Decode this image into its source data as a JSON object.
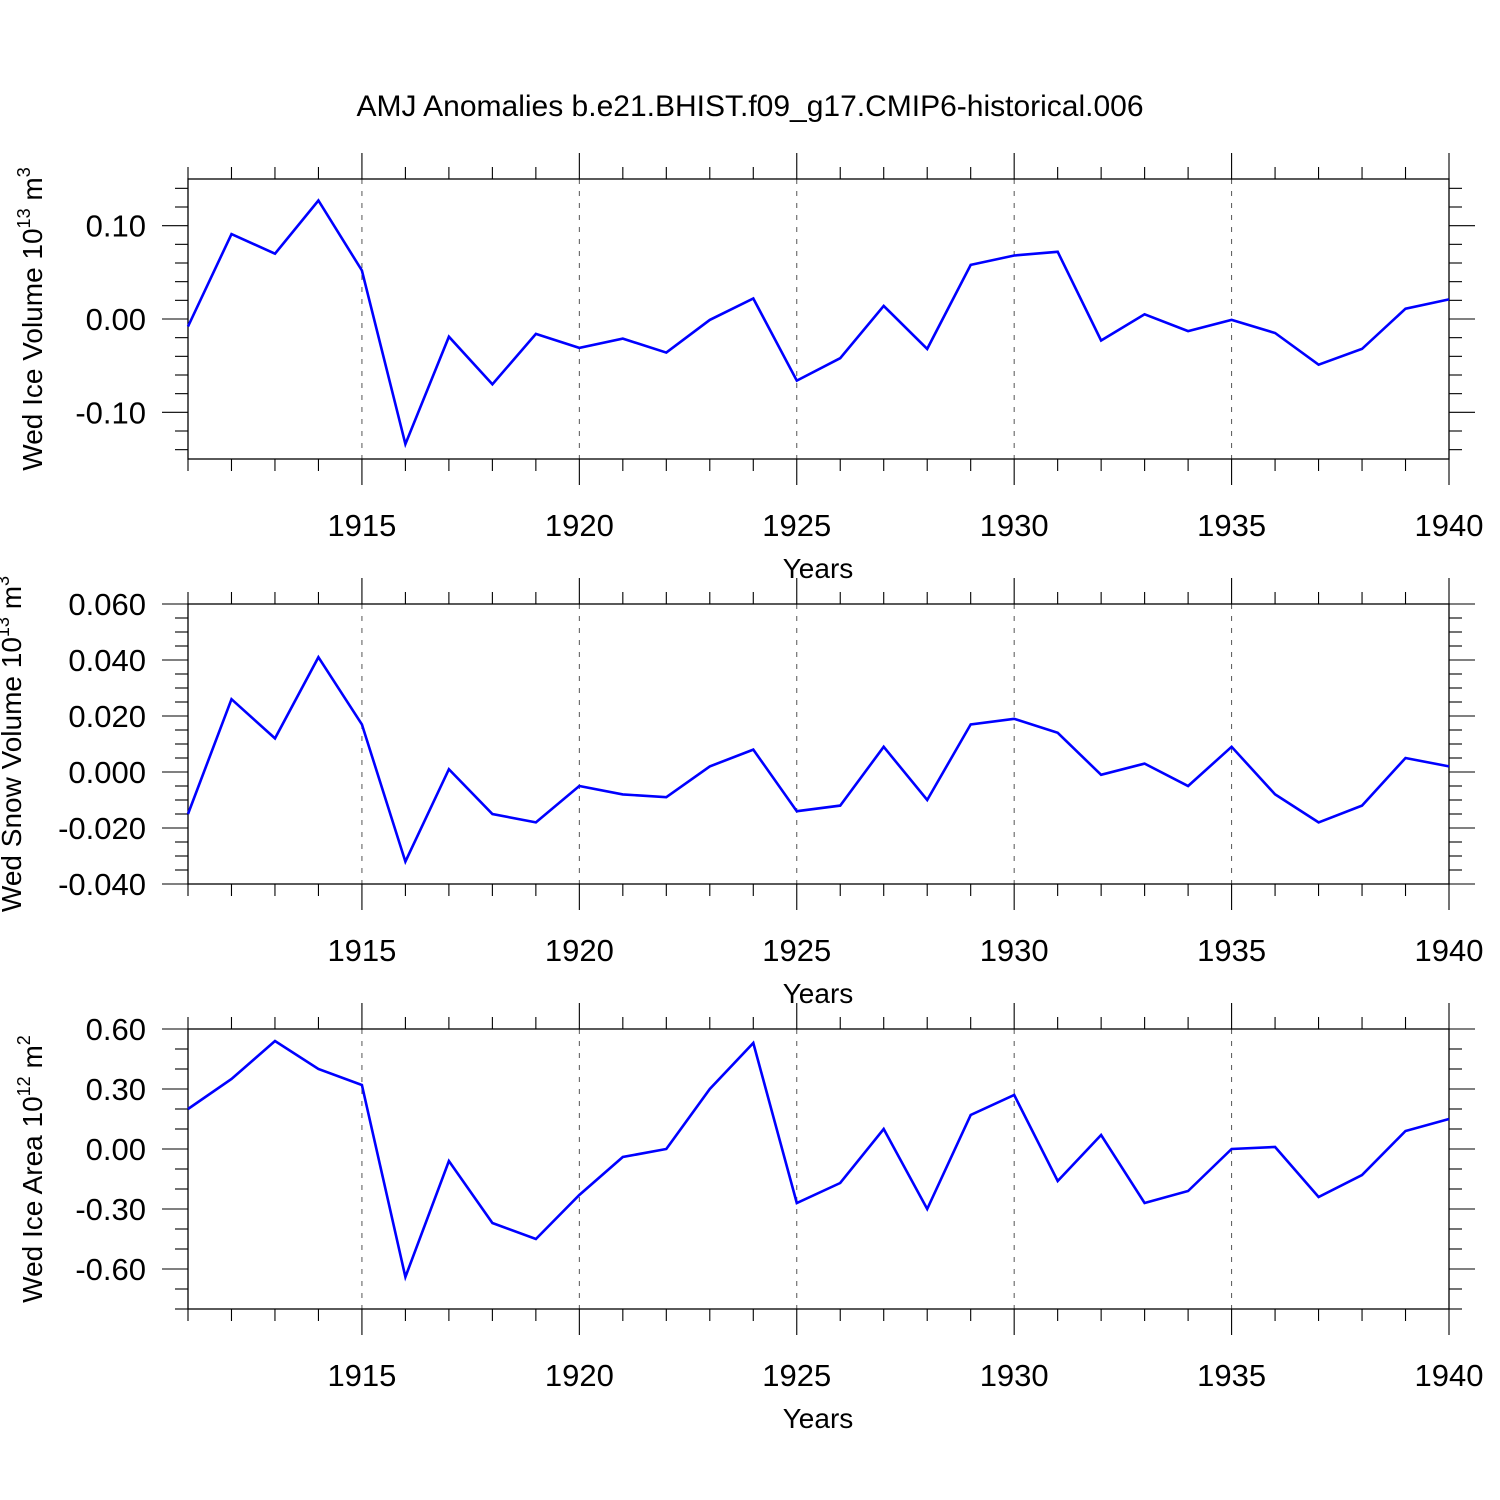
{
  "figure": {
    "title": "AMJ Anomalies b.e21.BHIST.f09_g17.CMIP6-historical.006",
    "line_color": "#0000ff"
  },
  "chart_data": [
    {
      "type": "line",
      "ylabel": "Wed Ice Volume 10",
      "ylabel_sup": "13",
      "ylabel_unit": " m",
      "ylabel_unit_sup": "3",
      "xlabel": "Years",
      "xlim": [
        1911,
        1940
      ],
      "ylim": [
        -0.15,
        0.15
      ],
      "x_ticks": [
        1915,
        1920,
        1925,
        1930,
        1935,
        1940
      ],
      "x_tick_labels": [
        "1915",
        "1920",
        "1925",
        "1930",
        "1935",
        "1940"
      ],
      "y_ticks": [
        -0.1,
        0.0,
        0.1
      ],
      "y_tick_labels": [
        "-0.10",
        "0.00",
        "0.10"
      ],
      "y_minor_step": 0.02,
      "grid": "vertical dashed at major x ticks",
      "series": [
        {
          "x": [
            1911,
            1912,
            1913,
            1914,
            1915,
            1916,
            1917,
            1918,
            1919,
            1920,
            1921,
            1922,
            1923,
            1924,
            1925,
            1926,
            1927,
            1928,
            1929,
            1930,
            1931,
            1932,
            1933,
            1934,
            1935,
            1936,
            1937,
            1938,
            1939,
            1940
          ],
          "values": [
            -0.008,
            0.091,
            0.07,
            0.127,
            0.052,
            -0.134,
            -0.019,
            -0.07,
            -0.016,
            -0.031,
            -0.021,
            -0.036,
            -0.001,
            0.022,
            -0.066,
            -0.042,
            0.014,
            -0.032,
            0.058,
            0.068,
            0.072,
            -0.023,
            0.005,
            -0.013,
            -0.001,
            -0.015,
            -0.049,
            -0.032,
            0.011,
            0.021
          ]
        }
      ]
    },
    {
      "type": "line",
      "ylabel": "Wed Snow Volume 10",
      "ylabel_sup": "13",
      "ylabel_unit": " m",
      "ylabel_unit_sup": "3",
      "xlabel": "Years",
      "xlim": [
        1911,
        1940
      ],
      "ylim": [
        -0.04,
        0.06
      ],
      "x_ticks": [
        1915,
        1920,
        1925,
        1930,
        1935,
        1940
      ],
      "x_tick_labels": [
        "1915",
        "1920",
        "1925",
        "1930",
        "1935",
        "1940"
      ],
      "y_ticks": [
        -0.04,
        -0.02,
        0.0,
        0.02,
        0.04,
        0.06
      ],
      "y_tick_labels": [
        "-0.040",
        "-0.020",
        "0.000",
        "0.020",
        "0.040",
        "0.060"
      ],
      "y_minor_step": 0.005,
      "grid": "vertical dashed at major x ticks",
      "series": [
        {
          "x": [
            1911,
            1912,
            1913,
            1914,
            1915,
            1916,
            1917,
            1918,
            1919,
            1920,
            1921,
            1922,
            1923,
            1924,
            1925,
            1926,
            1927,
            1928,
            1929,
            1930,
            1931,
            1932,
            1933,
            1934,
            1935,
            1936,
            1937,
            1938,
            1939,
            1940
          ],
          "values": [
            -0.015,
            0.026,
            0.012,
            0.041,
            0.017,
            -0.032,
            0.001,
            -0.015,
            -0.018,
            -0.005,
            -0.008,
            -0.009,
            0.002,
            0.008,
            -0.014,
            -0.012,
            0.009,
            -0.01,
            0.017,
            0.019,
            0.014,
            -0.001,
            0.003,
            -0.005,
            0.009,
            -0.008,
            -0.018,
            -0.012,
            0.005,
            0.002
          ]
        }
      ]
    },
    {
      "type": "line",
      "ylabel": "Wed Ice Area 10",
      "ylabel_sup": "12",
      "ylabel_unit": " m",
      "ylabel_unit_sup": "2",
      "xlabel": "Years",
      "xlim": [
        1911,
        1940
      ],
      "ylim": [
        -0.8,
        0.6
      ],
      "x_ticks": [
        1915,
        1920,
        1925,
        1930,
        1935,
        1940
      ],
      "x_tick_labels": [
        "1915",
        "1920",
        "1925",
        "1930",
        "1935",
        "1940"
      ],
      "y_ticks": [
        -0.6,
        -0.3,
        0.0,
        0.3,
        0.6
      ],
      "y_tick_labels": [
        "-0.60",
        "-0.30",
        "0.00",
        "0.30",
        "0.60"
      ],
      "y_minor_step": 0.1,
      "grid": "vertical dashed at major x ticks",
      "series": [
        {
          "x": [
            1911,
            1912,
            1913,
            1914,
            1915,
            1916,
            1917,
            1918,
            1919,
            1920,
            1921,
            1922,
            1923,
            1924,
            1925,
            1926,
            1927,
            1928,
            1929,
            1930,
            1931,
            1932,
            1933,
            1934,
            1935,
            1936,
            1937,
            1938,
            1939,
            1940
          ],
          "values": [
            0.2,
            0.35,
            0.54,
            0.4,
            0.32,
            -0.64,
            -0.06,
            -0.37,
            -0.45,
            -0.23,
            -0.04,
            0.0,
            0.3,
            0.53,
            -0.27,
            -0.17,
            0.1,
            -0.3,
            0.17,
            0.27,
            -0.16,
            0.07,
            -0.27,
            -0.21,
            0.0,
            0.01,
            -0.24,
            -0.13,
            0.09,
            0.15
          ]
        }
      ]
    }
  ]
}
